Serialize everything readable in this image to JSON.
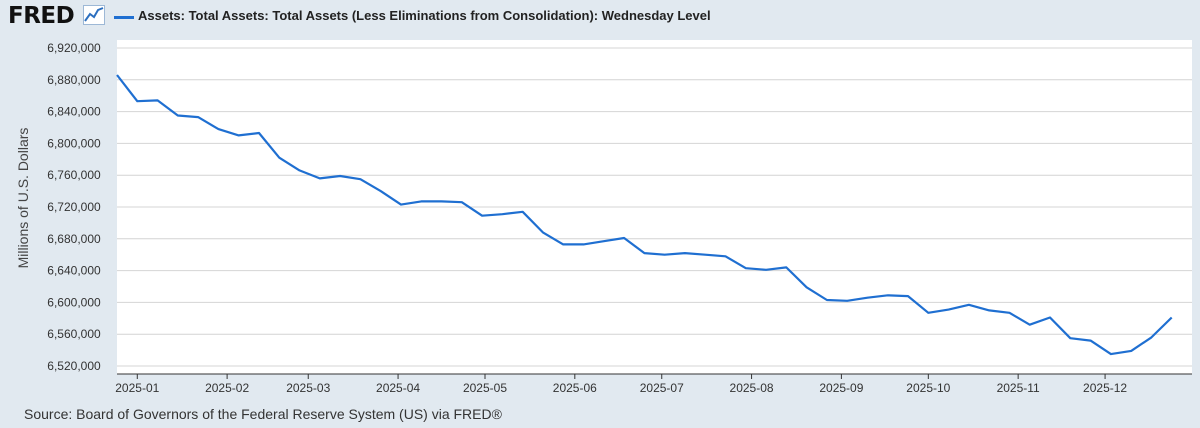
{
  "header": {
    "logo_text": "FRED",
    "logo_icon": "line-chart-icon",
    "logo_icon_color": "#2c6fbf"
  },
  "chart_data": {
    "type": "line",
    "title": "",
    "xlabel": "",
    "ylabel": "Millions of U.S. Dollars",
    "ylim": [
      6510000,
      6930000
    ],
    "xlim": [
      "2024-12-25",
      "2025-12-31"
    ],
    "grid": true,
    "legend_position": "top-left",
    "y_ticks": [
      6520000,
      6560000,
      6600000,
      6640000,
      6680000,
      6720000,
      6760000,
      6800000,
      6840000,
      6880000,
      6920000
    ],
    "y_tick_labels": [
      "6,520,000",
      "6,560,000",
      "6,600,000",
      "6,640,000",
      "6,680,000",
      "6,720,000",
      "6,760,000",
      "6,800,000",
      "6,840,000",
      "6,880,000",
      "6,920,000"
    ],
    "x_ticks": [
      "2025-01-01",
      "2025-02-01",
      "2025-03-01",
      "2025-04-01",
      "2025-05-01",
      "2025-06-01",
      "2025-07-01",
      "2025-08-01",
      "2025-09-01",
      "2025-10-01",
      "2025-11-01",
      "2025-12-01"
    ],
    "x_tick_labels": [
      "2025-01",
      "2025-02",
      "2025-03",
      "2025-04",
      "2025-05",
      "2025-06",
      "2025-07",
      "2025-08",
      "2025-09",
      "2025-10",
      "2025-11",
      "2025-12"
    ],
    "series": [
      {
        "name": "Assets: Total Assets: Total Assets (Less Eliminations from Consolidation): Wednesday Level",
        "color": "#1f6fd1",
        "points": [
          [
            "2024-12-25",
            6886000
          ],
          [
            "2025-01-01",
            6853000
          ],
          [
            "2025-01-08",
            6854000
          ],
          [
            "2025-01-15",
            6835000
          ],
          [
            "2025-01-22",
            6833000
          ],
          [
            "2025-01-29",
            6818000
          ],
          [
            "2025-02-05",
            6810000
          ],
          [
            "2025-02-12",
            6813000
          ],
          [
            "2025-02-19",
            6782000
          ],
          [
            "2025-02-26",
            6766000
          ],
          [
            "2025-03-05",
            6756000
          ],
          [
            "2025-03-12",
            6759000
          ],
          [
            "2025-03-19",
            6755000
          ],
          [
            "2025-03-26",
            6740000
          ],
          [
            "2025-04-02",
            6723000
          ],
          [
            "2025-04-09",
            6727000
          ],
          [
            "2025-04-16",
            6727000
          ],
          [
            "2025-04-23",
            6726000
          ],
          [
            "2025-04-30",
            6709000
          ],
          [
            "2025-05-07",
            6711000
          ],
          [
            "2025-05-14",
            6714000
          ],
          [
            "2025-05-21",
            6688000
          ],
          [
            "2025-05-28",
            6673000
          ],
          [
            "2025-06-04",
            6673000
          ],
          [
            "2025-06-11",
            6677000
          ],
          [
            "2025-06-18",
            6681000
          ],
          [
            "2025-06-25",
            6662000
          ],
          [
            "2025-07-02",
            6660000
          ],
          [
            "2025-07-09",
            6662000
          ],
          [
            "2025-07-16",
            6660000
          ],
          [
            "2025-07-23",
            6658000
          ],
          [
            "2025-07-30",
            6643000
          ],
          [
            "2025-08-06",
            6641000
          ],
          [
            "2025-08-13",
            6644000
          ],
          [
            "2025-08-20",
            6619000
          ],
          [
            "2025-08-27",
            6603000
          ],
          [
            "2025-09-03",
            6602000
          ],
          [
            "2025-09-10",
            6606000
          ],
          [
            "2025-09-17",
            6609000
          ],
          [
            "2025-09-24",
            6608000
          ],
          [
            "2025-10-01",
            6587000
          ],
          [
            "2025-10-08",
            6591000
          ],
          [
            "2025-10-15",
            6597000
          ],
          [
            "2025-10-22",
            6590000
          ],
          [
            "2025-10-29",
            6587000
          ],
          [
            "2025-11-05",
            6572000
          ],
          [
            "2025-11-12",
            6581000
          ],
          [
            "2025-11-19",
            6555000
          ],
          [
            "2025-11-26",
            6552000
          ],
          [
            "2025-12-03",
            6535000
          ],
          [
            "2025-12-10",
            6539000
          ],
          [
            "2025-12-17",
            6556000
          ],
          [
            "2025-12-24",
            6581000
          ]
        ]
      }
    ]
  },
  "footer": {
    "source": "Source: Board of Governors of the Federal Reserve System (US) via FRED®"
  },
  "colors": {
    "background": "#e1e9f0",
    "plot_background": "#ffffff",
    "grid": "#d4d4d4",
    "series": "#1f6fd1"
  }
}
